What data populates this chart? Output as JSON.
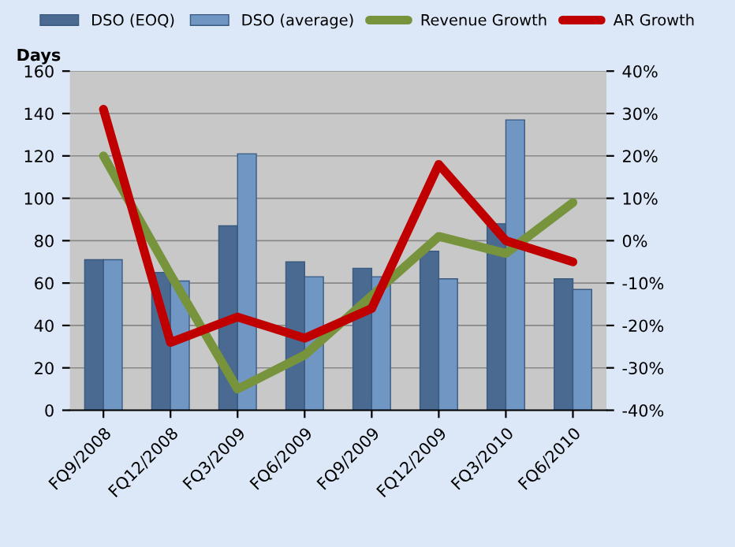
{
  "chart_data": {
    "type": "bar",
    "ylabel": "Days",
    "categories": [
      "FQ9/2008",
      "FQ12/2008",
      "FQ3/2009",
      "FQ6/2009",
      "FQ9/2009",
      "FQ12/2009",
      "FQ3/2010",
      "FQ6/2010"
    ],
    "series": [
      {
        "name": "DSO (EOQ)",
        "color": "#4a6a92",
        "values": [
          71,
          65,
          87,
          70,
          67,
          75,
          88,
          62
        ]
      },
      {
        "name": "DSO (average)",
        "color": "#7096c4",
        "values": [
          71,
          61,
          121,
          63,
          63,
          62,
          137,
          57
        ]
      },
      {
        "name": "Revenue Growth",
        "type": "line",
        "axis": "y2",
        "color": "#77933c",
        "values": [
          20,
          -8,
          -35,
          -27,
          -13,
          1,
          -3,
          9
        ]
      },
      {
        "name": "AR Growth",
        "type": "line",
        "axis": "y2",
        "color": "#c00000",
        "values": [
          31,
          -24,
          -18,
          -23,
          -16,
          18,
          0,
          -5
        ]
      }
    ],
    "ylim": [
      0,
      160
    ],
    "yticks": [
      0,
      20,
      40,
      60,
      80,
      100,
      120,
      140,
      160
    ],
    "y2lim": [
      -40,
      40
    ],
    "y2ticks": [
      {
        "value": -40,
        "label": "-40%"
      },
      {
        "value": -30,
        "label": "-30%"
      },
      {
        "value": -20,
        "label": "-20%"
      },
      {
        "value": -10,
        "label": "-10%"
      },
      {
        "value": 0,
        "label": "0%"
      },
      {
        "value": 10,
        "label": "10%"
      },
      {
        "value": 20,
        "label": "20%"
      },
      {
        "value": 30,
        "label": "30%"
      },
      {
        "value": 40,
        "label": "40%"
      }
    ],
    "grid": "y",
    "legend": "top"
  }
}
